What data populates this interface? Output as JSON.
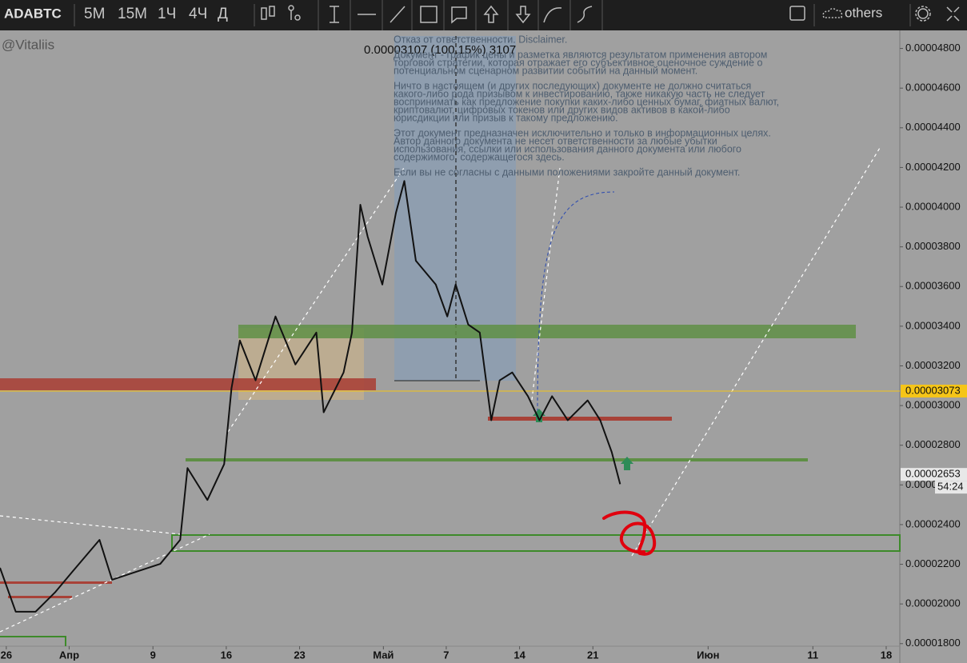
{
  "toolbar": {
    "symbol": "ADABTC",
    "intervals": [
      {
        "label": "5M"
      },
      {
        "label": "15M"
      },
      {
        "label": "1Ч"
      },
      {
        "label": "4Ч",
        "active": true
      },
      {
        "label": "Д"
      }
    ],
    "others": "others"
  },
  "chart_data": {
    "type": "line",
    "watermark": "@Vitaliis",
    "measure_label": "0.00003107 (100.15%) 3107",
    "disclaimer": [
      [
        "Отказ от ответственности. Disclaimer."
      ],
      [
        "Документ - график цены и разметка являются результатом применения автором",
        "торговой стратегии, которая отражает его субъективное оценочное суждение о",
        "потенциальном сценарном развитии событий на данный момент."
      ],
      [
        "Ничто в настоящем (и других последующих) документе не должно считаться",
        "какого-либо рода призывом к инвестированию, также никакую часть не следует",
        "воспринимать как предложение покупки каких-либо ценных бумаг, фиатных валют,",
        "криптовалют, цифровых токенов или других видов активов в какой-либо",
        "юрисдикции или призыв к такому предложению."
      ],
      [
        "Этот документ предназначен исключительно и только в информационных целях.",
        "Автор данного документа не несет ответственности за любые убытки",
        "использования, ссылки или использования данного документа или любого",
        "содержимого, содержащегося здесь."
      ],
      [
        "Если вы не согласны с данными положениями закройте данный документ."
      ]
    ],
    "x": [
      84.4,
      85.9,
      87.8,
      89.7,
      91.3,
      93.9,
      95.1,
      97.4,
      99.7,
      101.6,
      102.3,
      104.2,
      105.8,
      106.5,
      107.3,
      108.8,
      110.7,
      112.6,
      114.6,
      115.3,
      117.2,
      118.0,
      118.8,
      119.5,
      120.9,
      122.2,
      123.0,
      124.1,
      126.0,
      127.1,
      127.9,
      129.1,
      130.2,
      131.3,
      132.1,
      133.3,
      134.8,
      135.9,
      137.1,
      138.6,
      140.5,
      141.7,
      142.8,
      143.6
    ],
    "series": [
      {
        "name": "ADABTC",
        "color": "#111111",
        "values": [
          2.182e-05,
          1.961e-05,
          1.961e-05,
          2.061e-05,
          2.162e-05,
          2.323e-05,
          2.122e-05,
          2.162e-05,
          2.202e-05,
          2.323e-05,
          2.685e-05,
          2.524e-05,
          2.705e-05,
          3.087e-05,
          3.328e-05,
          3.127e-05,
          3.449e-05,
          3.207e-05,
          3.368e-05,
          2.966e-05,
          3.167e-05,
          3.368e-05,
          4.012e-05,
          3.851e-05,
          3.61e-05,
          3.972e-05,
          4.132e-05,
          3.73e-05,
          3.61e-05,
          3.449e-05,
          3.61e-05,
          3.408e-05,
          3.368e-05,
          2.926e-05,
          3.127e-05,
          3.167e-05,
          3.047e-05,
          2.926e-05,
          3.047e-05,
          2.926e-05,
          3.026e-05,
          2.926e-05,
          2.765e-05,
          2.604e-05
        ]
      }
    ],
    "xlim": [
      84.4,
      170.3
    ],
    "ylim": [
      1.787e-05,
      4.891e-05
    ],
    "xticks": [
      {
        "value": 85,
        "label": "26"
      },
      {
        "value": 91,
        "label": "Апр"
      },
      {
        "value": 99,
        "label": "9"
      },
      {
        "value": 106,
        "label": "16"
      },
      {
        "value": 113,
        "label": "23"
      },
      {
        "value": 121,
        "label": "Май"
      },
      {
        "value": 127,
        "label": "7"
      },
      {
        "value": 134,
        "label": "14"
      },
      {
        "value": 141,
        "label": "21"
      },
      {
        "value": 152,
        "label": "Июн"
      },
      {
        "value": 162,
        "label": "11"
      },
      {
        "value": 169,
        "label": "18"
      }
    ],
    "yticks": [
      {
        "value": 1.8e-05,
        "label": "0.00001800"
      },
      {
        "value": 2e-05,
        "label": "0.00002000"
      },
      {
        "value": 2.2e-05,
        "label": "0.00002200"
      },
      {
        "value": 2.4e-05,
        "label": "0.00002400"
      },
      {
        "value": 2.6e-05,
        "label": "0.00002600"
      },
      {
        "value": 2.8e-05,
        "label": "0.00002800"
      },
      {
        "value": 3e-05,
        "label": "0.00003000"
      },
      {
        "value": 3.2e-05,
        "label": "0.00003200"
      },
      {
        "value": 3.4e-05,
        "label": "0.00003400"
      },
      {
        "value": 3.6e-05,
        "label": "0.00003600"
      },
      {
        "value": 3.8e-05,
        "label": "0.00003800"
      },
      {
        "value": 4e-05,
        "label": "0.00004000"
      },
      {
        "value": 4.2e-05,
        "label": "0.00004200"
      },
      {
        "value": 4.4e-05,
        "label": "0.00004400"
      },
      {
        "value": 4.6e-05,
        "label": "0.00004600"
      },
      {
        "value": 4.8e-05,
        "label": "0.00004800"
      }
    ],
    "price_labels": [
      {
        "value": 3.073e-05,
        "label": "0.00003073",
        "color": "#f5c518"
      },
      {
        "value": 2.653e-05,
        "label": "0.00002653",
        "color": "#e8e8e8"
      }
    ],
    "countdown": "54:24"
  }
}
